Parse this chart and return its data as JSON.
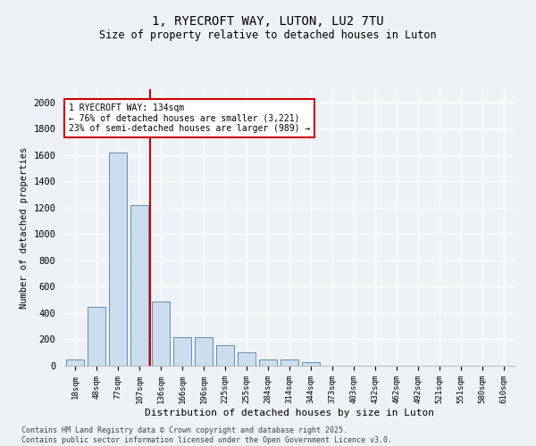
{
  "title_line1": "1, RYECROFT WAY, LUTON, LU2 7TU",
  "title_line2": "Size of property relative to detached houses in Luton",
  "xlabel": "Distribution of detached houses by size in Luton",
  "ylabel": "Number of detached properties",
  "categories": [
    "18sqm",
    "48sqm",
    "77sqm",
    "107sqm",
    "136sqm",
    "166sqm",
    "196sqm",
    "225sqm",
    "255sqm",
    "284sqm",
    "314sqm",
    "344sqm",
    "373sqm",
    "403sqm",
    "432sqm",
    "462sqm",
    "492sqm",
    "521sqm",
    "551sqm",
    "580sqm",
    "610sqm"
  ],
  "bar_values": [
    50,
    450,
    1620,
    1220,
    490,
    215,
    215,
    155,
    100,
    50,
    50,
    30,
    0,
    0,
    0,
    0,
    0,
    0,
    0,
    0,
    0
  ],
  "bar_color": "#ccdded",
  "bar_edge_color": "#6090b0",
  "vline_color": "#cc0000",
  "annotation_text": "1 RYECROFT WAY: 134sqm\n← 76% of detached houses are smaller (3,221)\n23% of semi-detached houses are larger (989) →",
  "annotation_box_color": "#cc0000",
  "ylim": [
    0,
    2100
  ],
  "yticks": [
    0,
    200,
    400,
    600,
    800,
    1000,
    1200,
    1400,
    1600,
    1800,
    2000
  ],
  "footer_line1": "Contains HM Land Registry data © Crown copyright and database right 2025.",
  "footer_line2": "Contains public sector information licensed under the Open Government Licence v3.0.",
  "bg_color": "#eef2f7",
  "plot_bg_color": "#eef2f7",
  "grid_color": "#ffffff"
}
